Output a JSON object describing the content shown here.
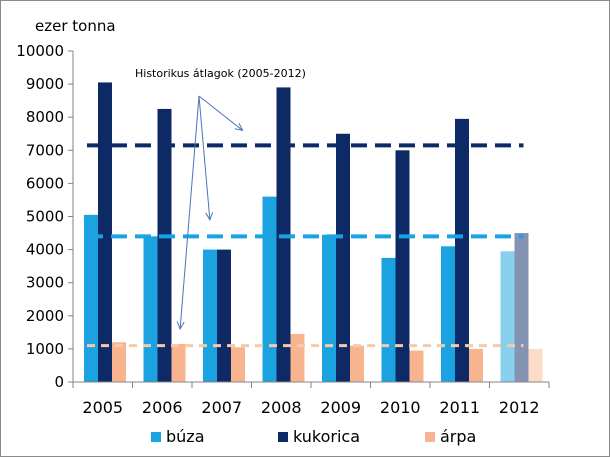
{
  "chart_data": {
    "type": "bar",
    "title": "",
    "ylabel": "ezer tonna",
    "xlabel": "",
    "ylim": [
      0,
      10000
    ],
    "yticks": [
      0,
      1000,
      2000,
      3000,
      4000,
      5000,
      6000,
      7000,
      8000,
      9000,
      10000
    ],
    "categories": [
      "2005",
      "2006",
      "2007",
      "2008",
      "2009",
      "2010",
      "2011",
      "2012"
    ],
    "series": [
      {
        "name": "búza",
        "color": "#1aa3e0",
        "values": [
          5050,
          4400,
          4000,
          5600,
          4450,
          3750,
          4100,
          3950
        ]
      },
      {
        "name": "kukorica",
        "color": "#0d2a66",
        "values": [
          9050,
          8250,
          4000,
          8900,
          7500,
          7000,
          7950,
          4500
        ]
      },
      {
        "name": "árpa",
        "color": "#f7b48e",
        "values": [
          1200,
          1150,
          1050,
          1450,
          1100,
          950,
          1000,
          1000
        ]
      }
    ],
    "highlight_last_category_faded": true,
    "faded_colors": [
      "#89d0ef",
      "#8593b2",
      "#fcdcc8"
    ],
    "averages": [
      {
        "series": "búza",
        "value": 4400,
        "color": "#1aa3e0"
      },
      {
        "series": "kukorica",
        "value": 7150,
        "color": "#0d2a66"
      },
      {
        "series": "árpa",
        "value": 1100,
        "color": "#f7c9a8"
      }
    ],
    "annotation": {
      "text": "Historikus átlagok (2005-2012)",
      "arrow_targets": [
        {
          "category": "2007",
          "value": 7600
        },
        {
          "category": "2007",
          "value": 4900
        },
        {
          "category": "2006",
          "value": 1600
        }
      ]
    },
    "legend": {
      "position": "bottom",
      "entries": [
        "búza",
        "kukorica",
        "árpa"
      ]
    },
    "grid": false
  }
}
